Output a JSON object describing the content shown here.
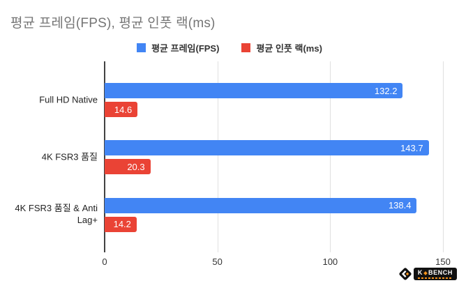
{
  "title": "평균 프레임(FPS), 평균 인풋 랙(ms)",
  "legend": {
    "items": [
      {
        "label": "평균 프레임(FPS)",
        "color": "#4285F4"
      },
      {
        "label": "평균 인풋 랙(ms)",
        "color": "#EA4335"
      }
    ]
  },
  "chart_data": {
    "type": "bar",
    "orientation": "horizontal",
    "title": "평균 프레임(FPS), 평균 인풋 랙(ms)",
    "categories": [
      "Full HD Native",
      "4K FSR3 품질",
      "4K FSR3 품질 & Anti Lag+"
    ],
    "series": [
      {
        "name": "평균 프레임(FPS)",
        "color": "#4285F4",
        "values": [
          132.2,
          143.7,
          138.4
        ]
      },
      {
        "name": "평균 인풋 랙(ms)",
        "color": "#EA4335",
        "values": [
          14.6,
          20.3,
          14.2
        ]
      }
    ],
    "xlim": [
      0,
      150
    ],
    "x_ticks": [
      0,
      50,
      100,
      150
    ],
    "grid": true,
    "legend_position": "top",
    "value_labels": "inside-end"
  },
  "watermark": {
    "brand_left": "K",
    "brand_right": "BENCH"
  },
  "colors": {
    "axis": "#424242",
    "gridline": "#e0e0e0",
    "title_text": "#757575",
    "category_text": "#222222",
    "tick_text": "#333333",
    "value_text": "#ffffff",
    "brand_orange": "#f7941d",
    "brand_black": "#111111"
  }
}
